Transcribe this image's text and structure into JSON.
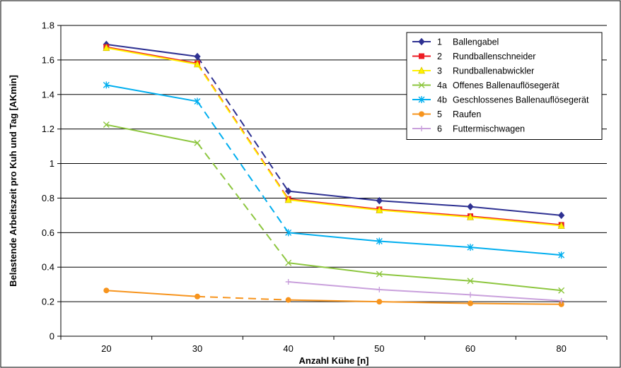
{
  "chart_data": {
    "type": "line",
    "title": "",
    "xlabel": "Anzahl Kühe [n]",
    "ylabel": "Belastende Arbeitszeit pro Kuh und Tag [AKmin]",
    "categories": [
      "20",
      "30",
      "40",
      "50",
      "60",
      "80"
    ],
    "y_ticks": [
      "0",
      "0.2",
      "0.4",
      "0.6",
      "0.8",
      "1",
      "1.2",
      "1.4",
      "1.6",
      "1.8"
    ],
    "ylim": [
      0,
      1.8
    ],
    "grid": "horizontal",
    "legend_position": "top-right",
    "dashed_segment": "30-40",
    "series": [
      {
        "id": "1",
        "name": "Ballengabel",
        "color": "#2e3192",
        "marker": "diamond",
        "values": [
          1.69,
          1.62,
          0.84,
          0.785,
          0.75,
          0.7
        ]
      },
      {
        "id": "2",
        "name": "Rundballenschneider",
        "color": "#ed1c24",
        "marker": "square",
        "values": [
          1.675,
          1.58,
          0.795,
          0.735,
          0.695,
          0.645
        ]
      },
      {
        "id": "3",
        "name": "Rundballenabwickler",
        "color": "#fff200",
        "marker": "triangle",
        "values": [
          1.67,
          1.575,
          0.79,
          0.73,
          0.69,
          0.64
        ]
      },
      {
        "id": "4a",
        "name": "Offenes Ballenauflösegerät",
        "color": "#8dc63f",
        "marker": "x",
        "values": [
          1.225,
          1.12,
          0.425,
          0.36,
          0.32,
          0.265
        ]
      },
      {
        "id": "4b",
        "name": "Geschlossenes Ballenauflösegerät",
        "color": "#00aeef",
        "marker": "star",
        "values": [
          1.455,
          1.36,
          0.6,
          0.55,
          0.515,
          0.47
        ]
      },
      {
        "id": "5",
        "name": "Raufen",
        "color": "#f7941d",
        "marker": "circle",
        "values": [
          0.265,
          0.23,
          0.21,
          0.2,
          0.19,
          0.185
        ]
      },
      {
        "id": "6",
        "name": "Futtermischwagen",
        "color": "#c9a0dc",
        "marker": "plus",
        "values": [
          null,
          null,
          0.315,
          0.27,
          0.24,
          0.205
        ]
      }
    ]
  }
}
